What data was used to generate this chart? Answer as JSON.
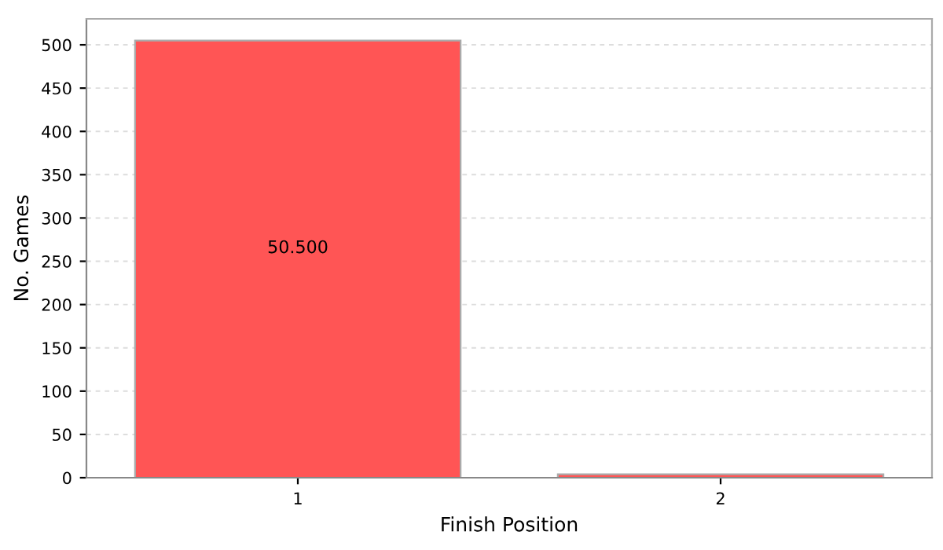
{
  "chart_data": {
    "type": "bar",
    "xlabel": "Finish Position",
    "ylabel": "No. Games",
    "categories": [
      "1",
      "2"
    ],
    "values": [
      505,
      4
    ],
    "annotations": [
      "50.500"
    ],
    "color": "#ff5555",
    "ylim": [
      0,
      530
    ],
    "yticks": [
      0,
      50,
      100,
      150,
      200,
      250,
      300,
      350,
      400,
      450,
      500
    ],
    "grid": "y",
    "legend": false
  }
}
